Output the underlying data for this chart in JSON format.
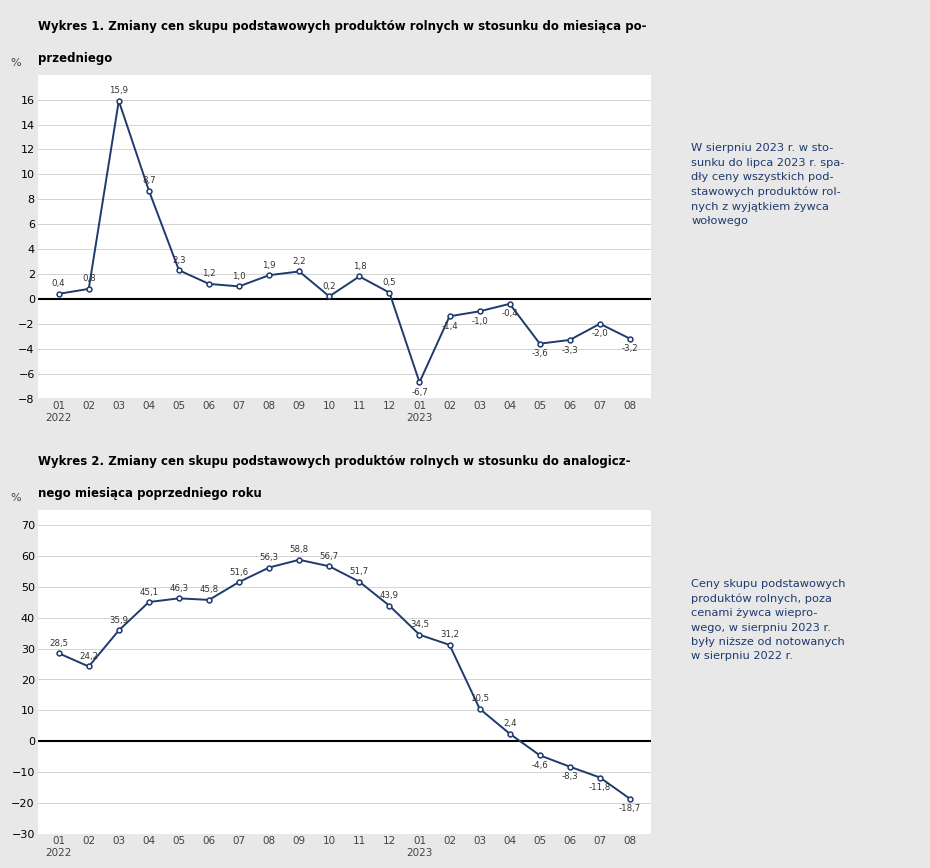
{
  "chart1": {
    "title_line1": "Wykres 1. Zmiany cen skupu podstawowych produktów rolnych w stosunku do miesiąca po-",
    "title_line2": "przedniego",
    "ylabel": "%",
    "ylim": [
      -8,
      18
    ],
    "yticks": [
      -8,
      -6,
      -4,
      -2,
      0,
      2,
      4,
      6,
      8,
      10,
      12,
      14,
      16
    ],
    "values": [
      0.4,
      0.8,
      15.9,
      8.7,
      2.3,
      1.2,
      1.0,
      1.9,
      2.2,
      0.2,
      1.8,
      0.5,
      -6.7,
      -1.4,
      -1.0,
      -0.4,
      -3.6,
      -3.3,
      -2.0,
      -3.2
    ],
    "labels": [
      "01\n2022",
      "02",
      "03",
      "04",
      "05",
      "06",
      "07",
      "08",
      "09",
      "10",
      "11",
      "12",
      "01\n2023",
      "02",
      "03",
      "04",
      "05",
      "06",
      "07",
      "08"
    ],
    "annotation_text": "W sierpniu 2023 r. w sto-\nsunku do lipca 2023 r. spa-\ndły ceny wszystkich pod-\nstawowych produktów rol-\nnych z wyjątkiem żywca\nwołowego"
  },
  "chart2": {
    "title_line1": "Wykres 2. Zmiany cen skupu podstawowych produktów rolnych w stosunku do analogicz-",
    "title_line2": "nego miesiąca poprzedniego roku",
    "ylabel": "%",
    "ylim": [
      -30,
      75
    ],
    "yticks": [
      -30,
      -20,
      -10,
      0,
      10,
      20,
      30,
      40,
      50,
      60,
      70
    ],
    "values": [
      28.5,
      24.2,
      35.9,
      45.1,
      46.3,
      45.8,
      51.6,
      56.3,
      58.8,
      56.7,
      51.7,
      43.9,
      34.5,
      31.2,
      10.5,
      2.4,
      -4.6,
      -8.3,
      -11.8,
      -18.7
    ],
    "labels": [
      "01\n2022",
      "02",
      "03",
      "04",
      "05",
      "06",
      "07",
      "08",
      "09",
      "10",
      "11",
      "12",
      "01\n2023",
      "02",
      "03",
      "04",
      "05",
      "06",
      "07",
      "08"
    ],
    "annotation_text": "Ceny skupu podstawowych\nproduktów rolnych, poza\ncenami żywca wiepro-\nwego, w sierpniu 2023 r.\nbyły niższe od notowanych\nw sierpniu 2022 r."
  },
  "line_color": "#1e3a6e",
  "marker_color": "#ffffff",
  "marker_edge_color": "#1e3a6e",
  "bg_color": "#e8e8e8",
  "plot_bg_color": "#ffffff",
  "zero_line_color": "#000000",
  "grid_color": "#cccccc",
  "annotation_color": "#1e3a6e",
  "title_color": "#000000",
  "label_color": "#333333"
}
